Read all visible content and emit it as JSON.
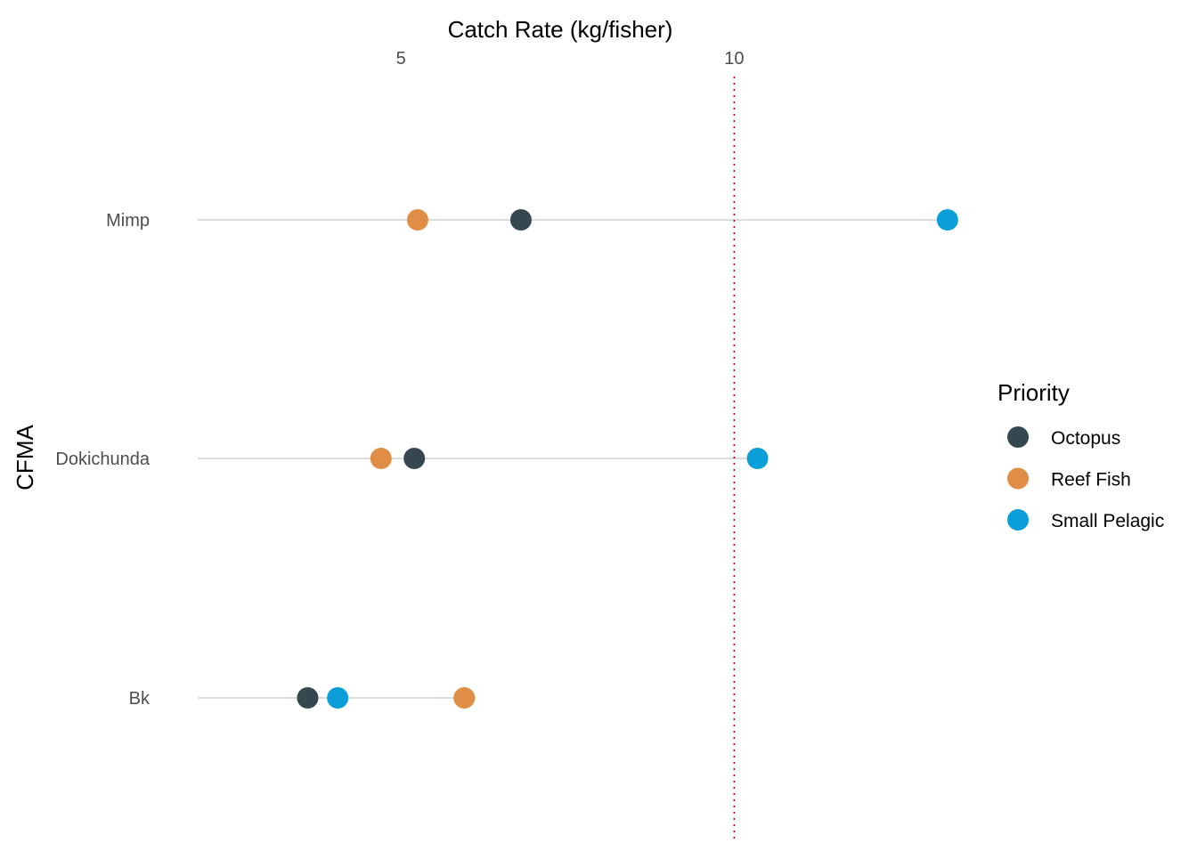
{
  "chart_data": {
    "type": "scatter",
    "subtype": "dot-plot",
    "orientation": "horizontal",
    "x_axis_position": "top",
    "xlabel": "Catch Rate (kg/fisher)",
    "ylabel": "CFMA",
    "xlim": [
      1.95,
      13.55
    ],
    "xticks": [
      5,
      10
    ],
    "categories": [
      "Mimp",
      "Dokichunda",
      "Bk"
    ],
    "reference_line": {
      "x": 10,
      "style": "dotted",
      "color": "#CC0000"
    },
    "grid": false,
    "segment_color": "#D0D0D0",
    "legend": {
      "title": "Priority",
      "position": "right"
    },
    "series": [
      {
        "name": "Octopus",
        "color": "#36474F",
        "values": [
          6.8,
          5.2,
          3.6
        ]
      },
      {
        "name": "Reef Fish",
        "color": "#E08E45",
        "values": [
          5.25,
          4.7,
          5.95
        ]
      },
      {
        "name": "Small Pelagic",
        "color": "#0A9FD8",
        "values": [
          13.2,
          10.35,
          4.05
        ]
      }
    ]
  }
}
